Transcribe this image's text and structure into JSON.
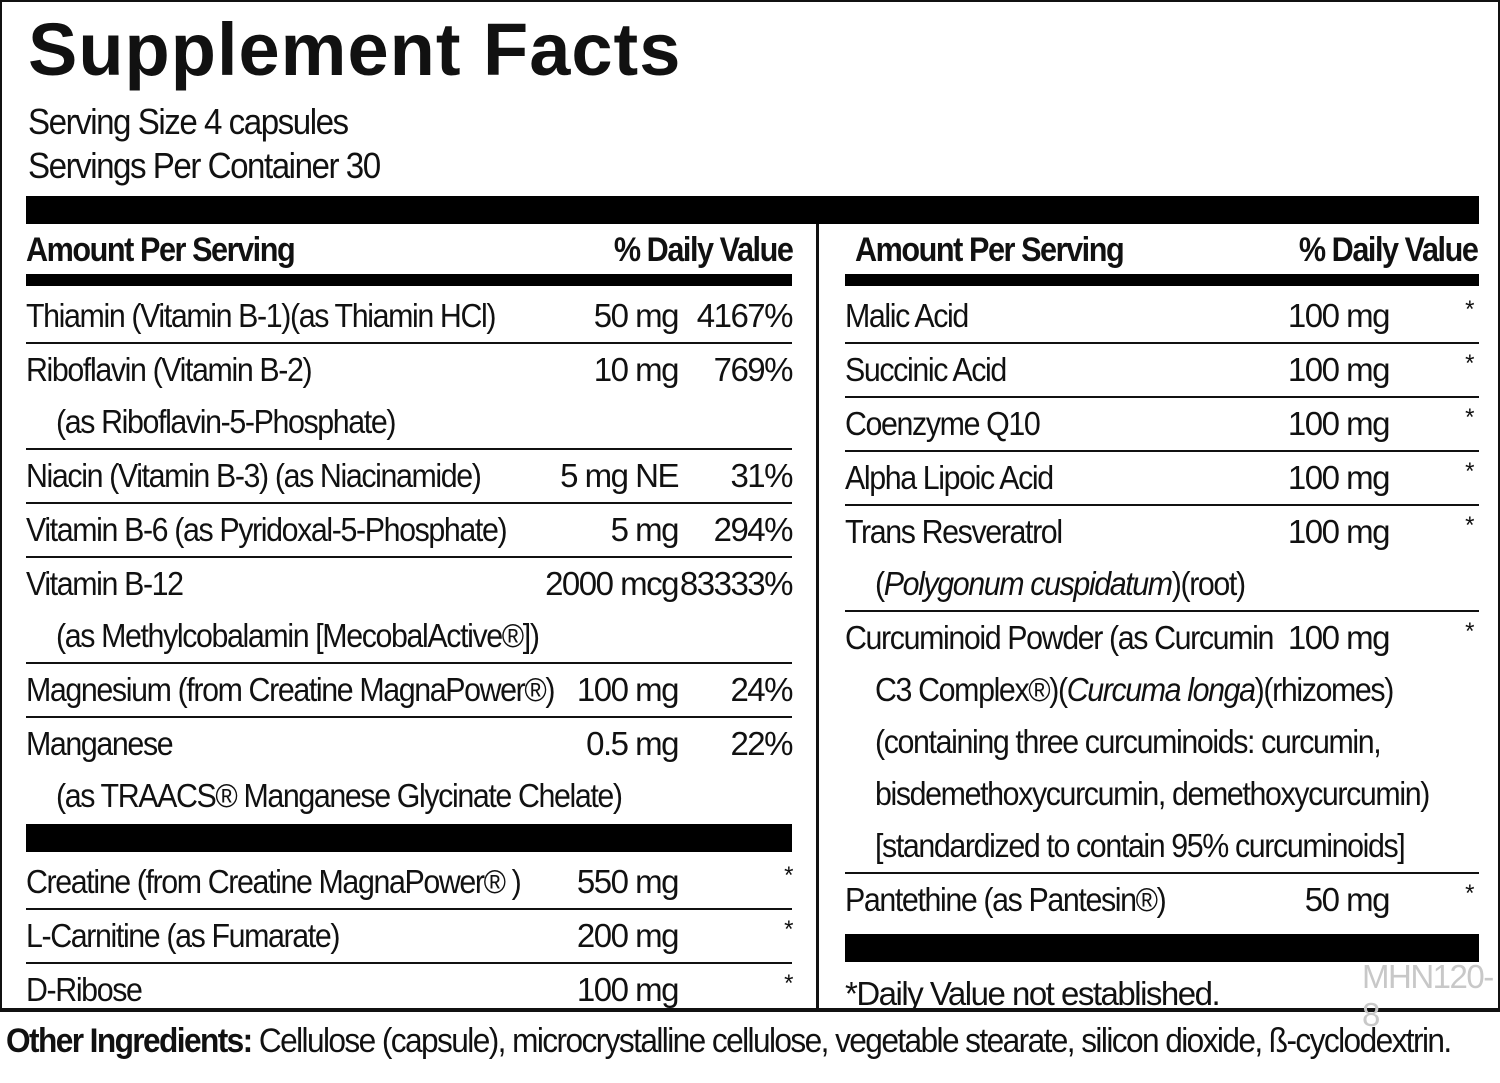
{
  "title": "Supplement Facts",
  "serving_size": "Serving Size 4 capsules",
  "servings_per_container": "Servings Per Container 30",
  "headers": {
    "left": {
      "amount": "Amount Per Serving",
      "dv": "% Daily Value"
    },
    "right": {
      "amount": "Amount Per Serving",
      "dv": "% Daily Value"
    }
  },
  "left_rows": [
    {
      "lines": [
        "Thiamin (Vitamin B-1)(as Thiamin HCl)"
      ],
      "amount": "50 mg",
      "dv": "4167%"
    },
    {
      "lines": [
        "Riboflavin (Vitamin B-2)",
        "(as Riboflavin-5-Phosphate)"
      ],
      "amount": "10 mg",
      "dv": "769%"
    },
    {
      "lines": [
        "Niacin (Vitamin B-3) (as Niacinamide)"
      ],
      "amount": "5 mg NE",
      "dv": "31%"
    },
    {
      "lines": [
        "Vitamin B-6 (as Pyridoxal-5-Phosphate)"
      ],
      "amount": "5 mg",
      "dv": "294%"
    },
    {
      "lines": [
        "Vitamin B-12",
        "(as Methylcobalamin [MecobalActive®])"
      ],
      "amount": "2000 mcg",
      "dv": "83333%"
    },
    {
      "lines": [
        "Magnesium (from Creatine MagnaPower®)"
      ],
      "amount": "100 mg",
      "dv": "24%"
    },
    {
      "lines": [
        "Manganese",
        "(as TRAACS® Manganese Glycinate Chelate)"
      ],
      "amount": "0.5 mg",
      "dv": "22%",
      "bar_after": true
    },
    {
      "lines": [
        "Creatine (from Creatine MagnaPower® )"
      ],
      "amount": "550 mg",
      "dv": "*"
    },
    {
      "lines": [
        "L-Carnitine (as Fumarate)"
      ],
      "amount": "200 mg",
      "dv": "*"
    },
    {
      "lines": [
        "D-Ribose"
      ],
      "amount": "100 mg",
      "dv": "*",
      "last": true
    }
  ],
  "right_rows": [
    {
      "lines": [
        "Malic Acid"
      ],
      "amount": "100 mg",
      "dv": "*"
    },
    {
      "lines": [
        "Succinic Acid"
      ],
      "amount": "100 mg",
      "dv": "*"
    },
    {
      "lines": [
        "Coenzyme Q10"
      ],
      "amount": "100 mg",
      "dv": "*"
    },
    {
      "lines": [
        "Alpha Lipoic Acid"
      ],
      "amount": "100 mg",
      "dv": "*"
    },
    {
      "lines": [
        "Trans Resveratrol",
        "(Polygonum cuspidatum)(root)"
      ],
      "amount": "100 mg",
      "dv": "*"
    },
    {
      "lines": [
        "Curcuminoid Powder (as Curcumin",
        "C3 Complex®)(Curcuma longa)(rhizomes)",
        "(containing three curcuminoids: curcumin,",
        "bisdemethoxycurcumin, demethoxycurcumin)",
        "[standardized to contain 95% curcuminoids]"
      ],
      "amount": "100 mg",
      "dv": "*"
    },
    {
      "lines": [
        "Pantethine (as Pantesin®)"
      ],
      "amount": "50 mg",
      "dv": "*",
      "bar_after": true,
      "last": true
    }
  ],
  "italic_phrases": [
    "Polygonum cuspidatum",
    "Curcuma longa"
  ],
  "footnote": "*Daily Value not established.",
  "product_code": "MHN120-8",
  "other_ingredients": {
    "label": "Other Ingredients:",
    "text": " Cellulose (capsule), microcrystalline cellulose, vegetable stearate, silicon dioxide, ß-cyclodextrin."
  }
}
